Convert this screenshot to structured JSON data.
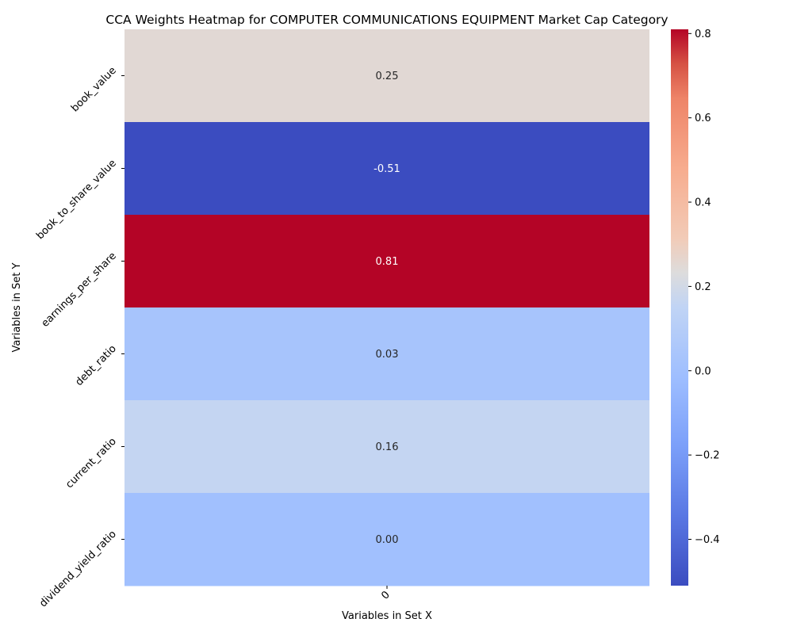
{
  "chart_data": {
    "type": "heatmap",
    "title": "CCA Weights Heatmap for COMPUTER COMMUNICATIONS EQUIPMENT Market Cap Category",
    "xlabel": "Variables in Set X",
    "ylabel": "Variables in Set Y",
    "x_categories": [
      "0"
    ],
    "y_categories": [
      "book_value",
      "book_to_share_value",
      "earnings_per_share",
      "debt_ratio",
      "current_ratio",
      "dividend_yield_ratio"
    ],
    "values": [
      [
        0.25
      ],
      [
        -0.51
      ],
      [
        0.81
      ],
      [
        0.03
      ],
      [
        0.16
      ],
      [
        0.0
      ]
    ],
    "cell_labels": [
      "0.25",
      "-0.51",
      "0.81",
      "0.03",
      "0.16",
      "0.00"
    ],
    "colormap": "coolwarm",
    "vmin": -0.51,
    "vmax": 0.81,
    "colorbar_ticks": [
      {
        "value": 0.8,
        "label": "0.8"
      },
      {
        "value": 0.6,
        "label": "0.6"
      },
      {
        "value": 0.4,
        "label": "0.4"
      },
      {
        "value": 0.2,
        "label": "0.2"
      },
      {
        "value": 0.0,
        "label": "0.0"
      },
      {
        "value": -0.2,
        "label": "−0.2"
      },
      {
        "value": -0.4,
        "label": "−0.4"
      }
    ]
  }
}
